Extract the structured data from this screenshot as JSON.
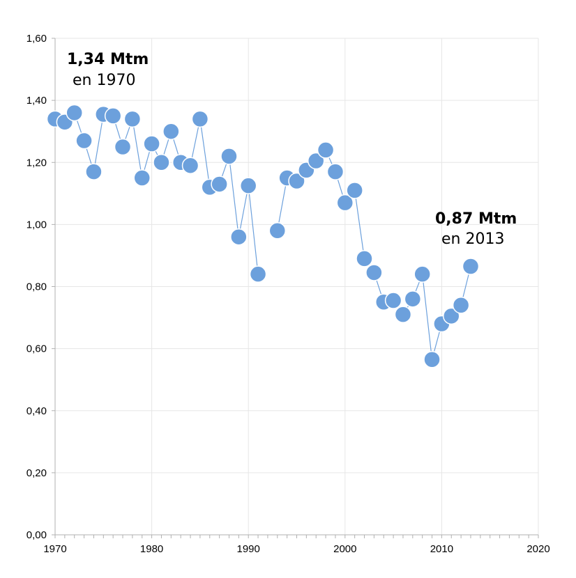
{
  "chart_data": {
    "type": "line",
    "x": [
      1970,
      1971,
      1972,
      1973,
      1974,
      1975,
      1976,
      1977,
      1978,
      1979,
      1980,
      1981,
      1982,
      1983,
      1984,
      1985,
      1986,
      1987,
      1988,
      1989,
      1990,
      1991,
      1993,
      1994,
      1995,
      1996,
      1997,
      1998,
      1999,
      2000,
      2001,
      2002,
      2003,
      2004,
      2005,
      2006,
      2007,
      2008,
      2009,
      2010,
      2011,
      2012,
      2013
    ],
    "series": [
      {
        "values": [
          1.34,
          1.33,
          1.36,
          1.27,
          1.17,
          1.355,
          1.35,
          1.25,
          1.34,
          1.15,
          1.26,
          1.2,
          1.3,
          1.2,
          1.19,
          1.34,
          1.12,
          1.13,
          1.22,
          0.96,
          1.125,
          0.84,
          0.98,
          1.15,
          1.14,
          1.175,
          1.205,
          1.24,
          1.17,
          1.07,
          1.11,
          0.89,
          0.845,
          0.75,
          0.755,
          0.71,
          0.76,
          0.84,
          0.565,
          0.68,
          0.705,
          0.74,
          0.865
        ]
      }
    ],
    "segments": [
      [
        0,
        21
      ],
      [
        22,
        42
      ]
    ],
    "xlim": [
      1970,
      2020
    ],
    "ylim": [
      0,
      1.6
    ],
    "x_ticks": [
      "1970",
      "1980",
      "1990",
      "2000",
      "2010",
      "2020"
    ],
    "y_ticks": [
      "0,00",
      "0,20",
      "0,40",
      "0,60",
      "0,80",
      "1,00",
      "1,20",
      "1,40",
      "1,60"
    ],
    "grid": true,
    "annotations": [
      {
        "bold": "1,34 Mtm",
        "text": "en 1970"
      },
      {
        "bold": "0,87 Mtm",
        "text": "en 2013"
      }
    ],
    "colors": {
      "marker": "#6ca0dc",
      "line": "#6ca0dc",
      "grid": "#e6e6e6",
      "axis": "#b0b0b0"
    }
  }
}
